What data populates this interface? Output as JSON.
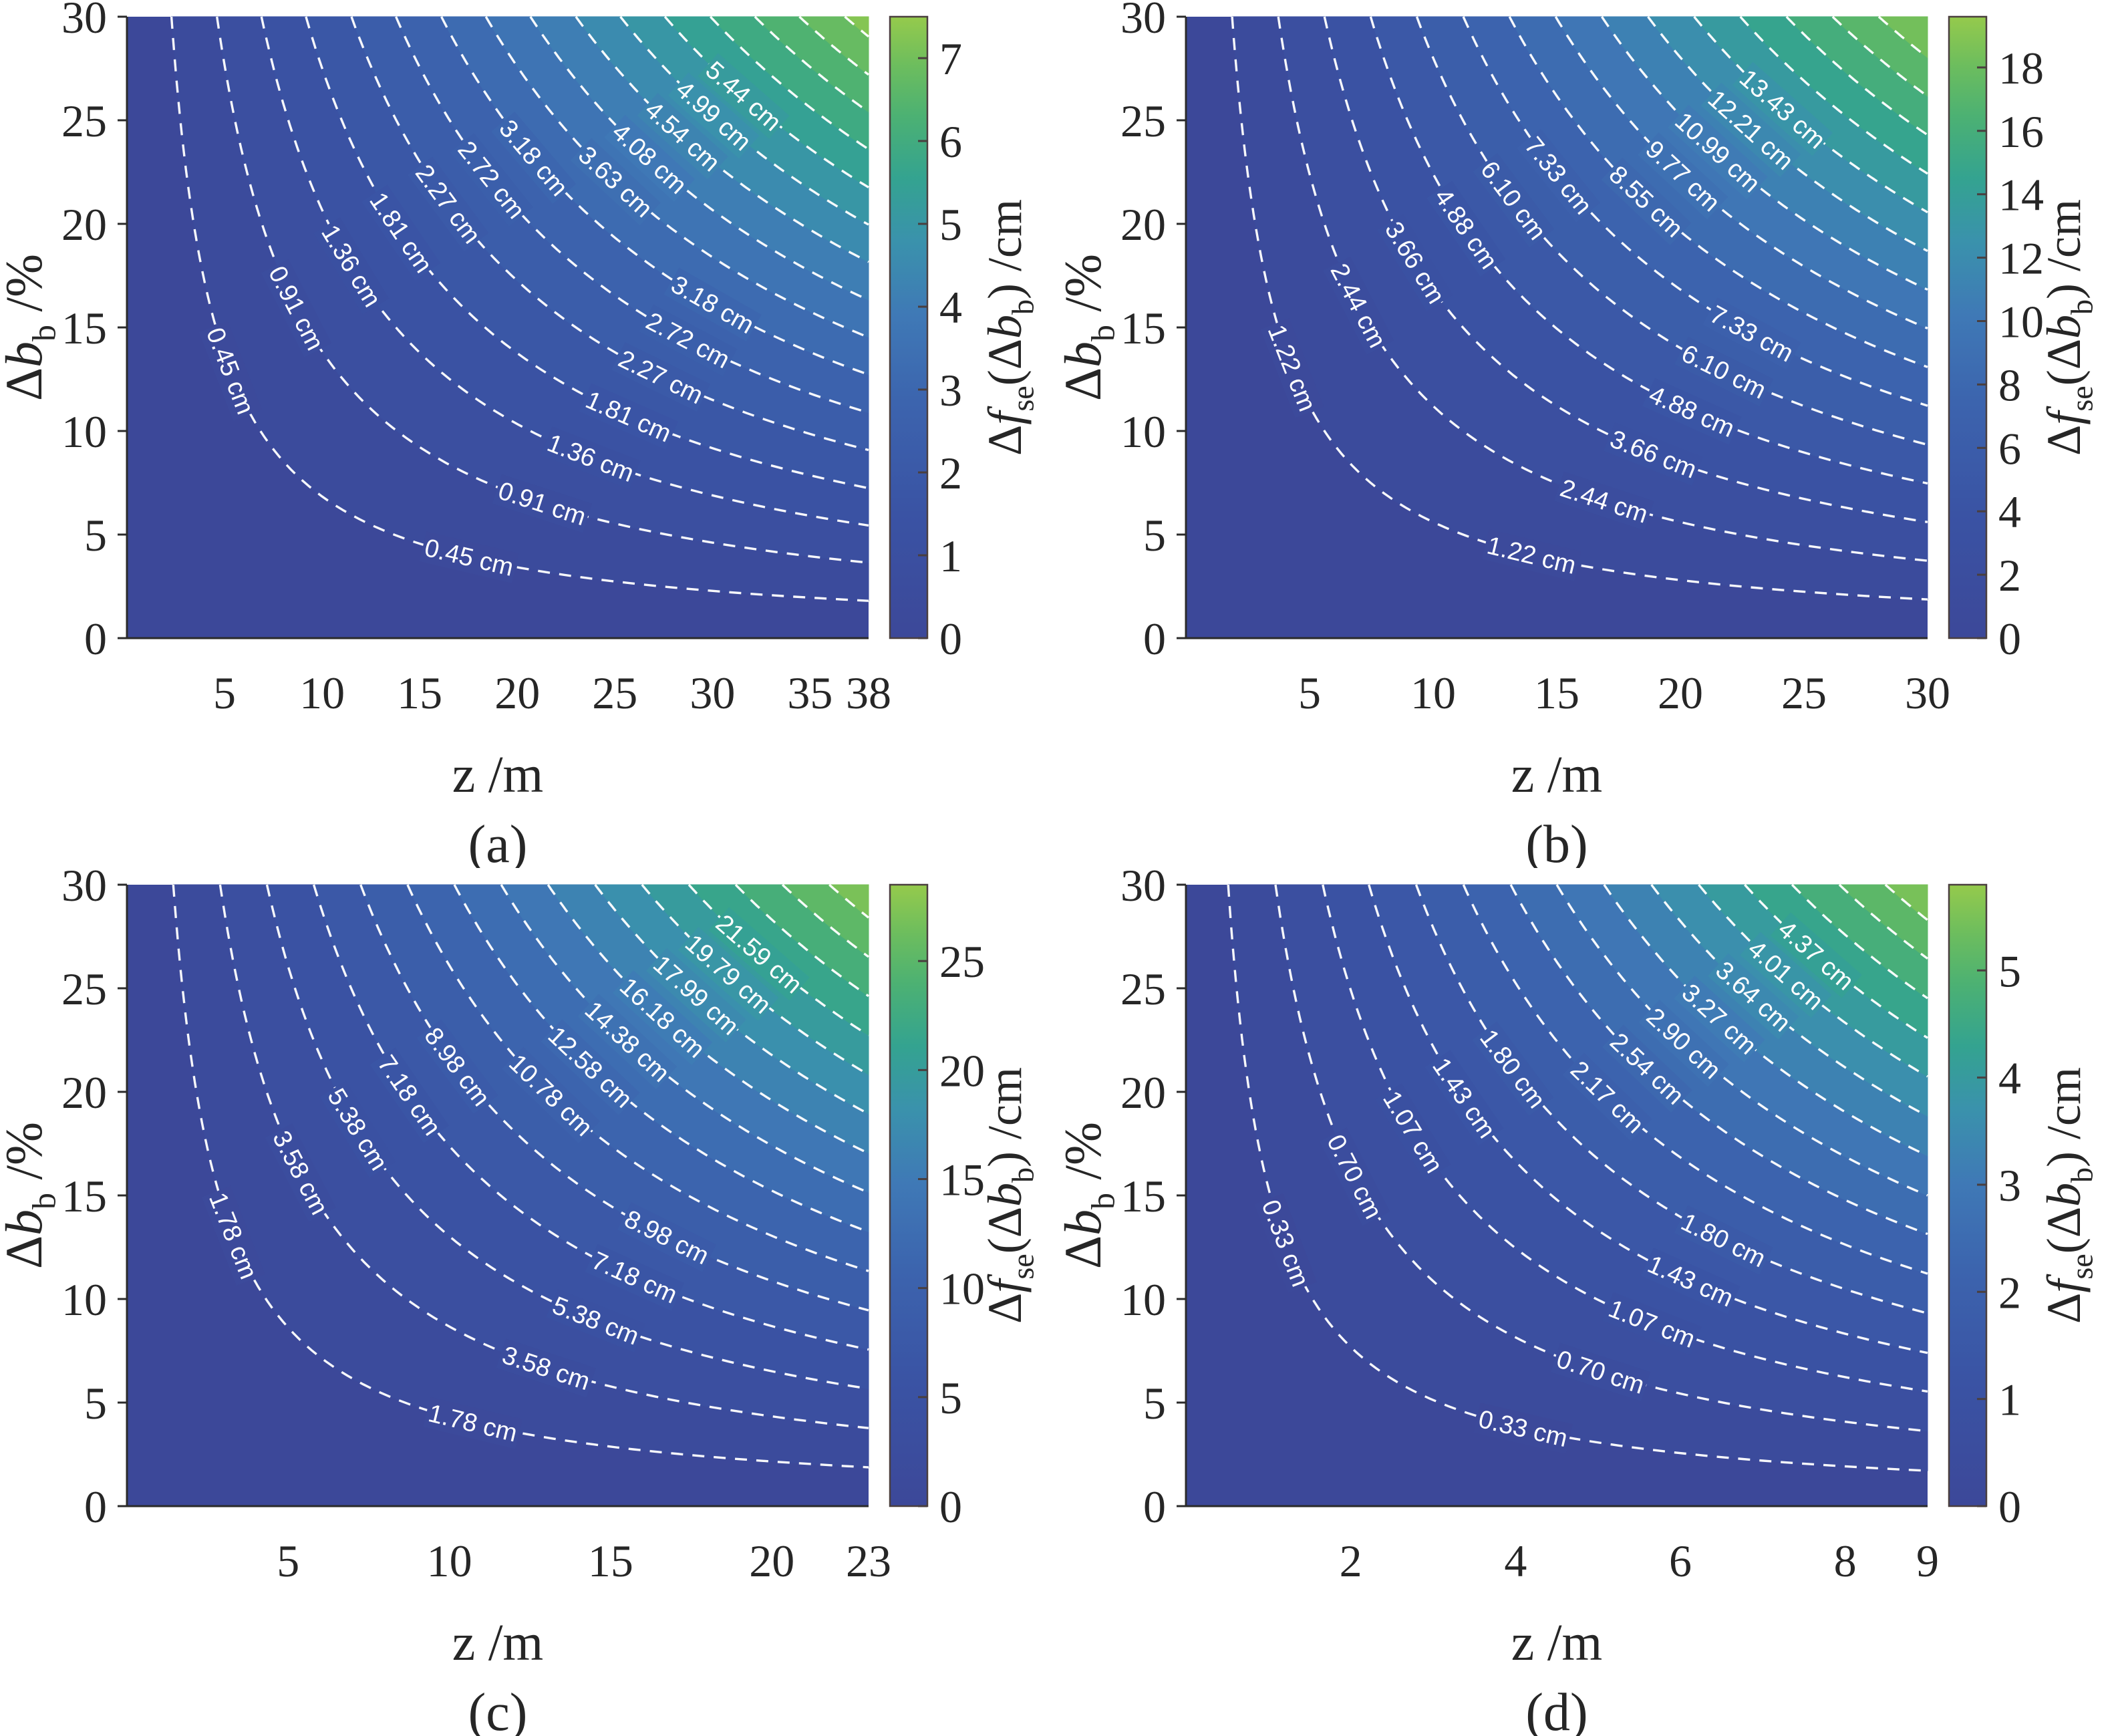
{
  "style": {
    "background": "#ffffff",
    "axis_color": "#2b2b2b",
    "tick_text_color": "#262626",
    "contour_line_color": "#ffffff",
    "contour_label_color": "#ffffff",
    "colormap": [
      [
        0.0,
        "#3c4899"
      ],
      [
        0.2,
        "#3a53a4"
      ],
      [
        0.38,
        "#3c64ae"
      ],
      [
        0.52,
        "#3f79b6"
      ],
      [
        0.64,
        "#3a92ac"
      ],
      [
        0.74,
        "#34a390"
      ],
      [
        0.84,
        "#4cb173"
      ],
      [
        0.92,
        "#6cbd5e"
      ],
      [
        1.0,
        "#95ca4c"
      ]
    ]
  },
  "chart_data": [
    {
      "type": "contour",
      "panel_label": "(a)",
      "xlabel": "z /m",
      "ylabel": "Δb_b /%",
      "xlabel_parts": [
        {
          "t": "z"
        },
        {
          "t": " /m"
        }
      ],
      "ylabel_parts": [
        {
          "t": "Δ"
        },
        {
          "t": "b",
          "i": true
        },
        {
          "t": "b",
          "sub": true
        },
        {
          "t": " /%"
        }
      ],
      "x_ticks": [
        5,
        10,
        15,
        20,
        25,
        30,
        35,
        38
      ],
      "x_max": 38,
      "y_ticks": [
        0,
        5,
        10,
        15,
        20,
        25,
        30
      ],
      "y_max": 30,
      "vmax": 7.5,
      "contour_unit": "cm",
      "levels": [
        {
          "v": 0.45,
          "label": "0.45 cm",
          "n": 2
        },
        {
          "v": 0.91,
          "label": "0.91 cm",
          "n": 2
        },
        {
          "v": 1.36,
          "label": "1.36 cm",
          "n": 2
        },
        {
          "v": 1.81,
          "label": "1.81 cm",
          "n": 2
        },
        {
          "v": 2.27,
          "label": "2.27 cm",
          "n": 2
        },
        {
          "v": 2.72,
          "label": "2.72 cm",
          "n": 2
        },
        {
          "v": 3.18,
          "label": "3.18 cm",
          "n": 2
        },
        {
          "v": 3.63,
          "label": "3.63 cm",
          "n": 1
        },
        {
          "v": 4.08,
          "label": "4.08 cm",
          "n": 1
        },
        {
          "v": 4.54,
          "label": "4.54 cm",
          "n": 1
        },
        {
          "v": 4.99,
          "label": "4.99 cm",
          "n": 1
        },
        {
          "v": 5.44,
          "label": "5.44 cm",
          "n": 1
        },
        {
          "v": 5.9,
          "n": 0
        },
        {
          "v": 6.35,
          "n": 0
        },
        {
          "v": 6.8,
          "n": 0
        },
        {
          "v": 7.26,
          "n": 0
        }
      ],
      "colorbar": {
        "ticks": [
          0,
          1,
          2,
          3,
          4,
          5,
          6,
          7
        ],
        "label": "Δf_se(Δb_b) /cm",
        "label_parts": [
          {
            "t": "Δ"
          },
          {
            "t": "f",
            "i": true
          },
          {
            "t": "se",
            "sub": true
          },
          {
            "t": "(Δ"
          },
          {
            "t": "b",
            "i": true
          },
          {
            "t": "b",
            "sub": true
          },
          {
            "t": ") /cm"
          }
        ]
      }
    },
    {
      "type": "contour",
      "panel_label": "(b)",
      "xlabel": "z /m",
      "ylabel": "Δb_b /%",
      "xlabel_parts": [
        {
          "t": "z"
        },
        {
          "t": " /m"
        }
      ],
      "ylabel_parts": [
        {
          "t": "Δ"
        },
        {
          "t": "b",
          "i": true
        },
        {
          "t": "b",
          "sub": true
        },
        {
          "t": " /%"
        }
      ],
      "x_ticks": [
        5,
        10,
        15,
        20,
        25,
        30
      ],
      "x_max": 30,
      "y_ticks": [
        0,
        5,
        10,
        15,
        20,
        25,
        30
      ],
      "y_max": 30,
      "vmax": 19.6,
      "contour_unit": "cm",
      "levels": [
        {
          "v": 1.22,
          "label": "1.22 cm",
          "n": 2
        },
        {
          "v": 2.44,
          "label": "2.44 cm",
          "n": 2
        },
        {
          "v": 3.66,
          "label": "3.66 cm",
          "n": 2
        },
        {
          "v": 4.88,
          "label": "4.88 cm",
          "n": 2
        },
        {
          "v": 6.1,
          "label": "6.10 cm",
          "n": 2
        },
        {
          "v": 7.33,
          "label": "7.33 cm",
          "n": 2
        },
        {
          "v": 8.55,
          "label": "8.55 cm",
          "n": 1
        },
        {
          "v": 9.77,
          "label": "9.77 cm",
          "n": 1
        },
        {
          "v": 10.99,
          "label": "10.99 cm",
          "n": 1
        },
        {
          "v": 12.21,
          "label": "12.21 cm",
          "n": 1
        },
        {
          "v": 13.43,
          "label": "13.43 cm",
          "n": 1
        },
        {
          "v": 14.65,
          "n": 0
        },
        {
          "v": 15.87,
          "n": 0
        },
        {
          "v": 17.09,
          "n": 0
        },
        {
          "v": 18.31,
          "n": 0
        }
      ],
      "colorbar": {
        "ticks": [
          0,
          2,
          4,
          6,
          8,
          10,
          12,
          14,
          16,
          18
        ],
        "label": "Δf_se(Δb_b) /cm",
        "label_parts": [
          {
            "t": "Δ"
          },
          {
            "t": "f",
            "i": true
          },
          {
            "t": "se",
            "sub": true
          },
          {
            "t": "(Δ"
          },
          {
            "t": "b",
            "i": true
          },
          {
            "t": "b",
            "sub": true
          },
          {
            "t": ") /cm"
          }
        ]
      }
    },
    {
      "type": "contour",
      "panel_label": "(c)",
      "xlabel": "z /m",
      "ylabel": "Δb_b /%",
      "xlabel_parts": [
        {
          "t": "z"
        },
        {
          "t": " /m"
        }
      ],
      "ylabel_parts": [
        {
          "t": "Δ"
        },
        {
          "t": "b",
          "i": true
        },
        {
          "t": "b",
          "sub": true
        },
        {
          "t": " /%"
        }
      ],
      "x_ticks": [
        5,
        10,
        15,
        20,
        23
      ],
      "x_max": 23,
      "y_ticks": [
        0,
        5,
        10,
        15,
        20,
        25,
        30
      ],
      "y_max": 30,
      "vmax": 28.5,
      "contour_unit": "cm",
      "levels": [
        {
          "v": 1.78,
          "label": "1.78 cm",
          "n": 2
        },
        {
          "v": 3.58,
          "label": "3.58 cm",
          "n": 2
        },
        {
          "v": 5.38,
          "label": "5.38 cm",
          "n": 2
        },
        {
          "v": 7.18,
          "label": "7.18 cm",
          "n": 2
        },
        {
          "v": 8.98,
          "label": "8.98 cm",
          "n": 2
        },
        {
          "v": 10.78,
          "label": "10.78 cm",
          "n": 1
        },
        {
          "v": 12.58,
          "label": "12.58 cm",
          "n": 1
        },
        {
          "v": 14.38,
          "label": "14.38 cm",
          "n": 1
        },
        {
          "v": 16.18,
          "label": "16.18 cm",
          "n": 1
        },
        {
          "v": 17.99,
          "label": "17.99 cm",
          "n": 1
        },
        {
          "v": 19.79,
          "label": "19.79 cm",
          "n": 1
        },
        {
          "v": 21.59,
          "label": "21.59 cm",
          "n": 1
        },
        {
          "v": 23.39,
          "n": 0
        },
        {
          "v": 25.19,
          "n": 0
        },
        {
          "v": 26.99,
          "n": 0
        }
      ],
      "colorbar": {
        "ticks": [
          0,
          5,
          10,
          15,
          20,
          25
        ],
        "label": "Δf_se(Δb_b) /cm",
        "label_parts": [
          {
            "t": "Δ"
          },
          {
            "t": "f",
            "i": true
          },
          {
            "t": "se",
            "sub": true
          },
          {
            "t": "(Δ"
          },
          {
            "t": "b",
            "i": true
          },
          {
            "t": "b",
            "sub": true
          },
          {
            "t": ") /cm"
          }
        ]
      }
    },
    {
      "type": "contour",
      "panel_label": "(d)",
      "xlabel": "z /m",
      "ylabel": "Δb_b /%",
      "xlabel_parts": [
        {
          "t": "z"
        },
        {
          "t": " /m"
        }
      ],
      "ylabel_parts": [
        {
          "t": "Δ"
        },
        {
          "t": "b",
          "i": true
        },
        {
          "t": "b",
          "sub": true
        },
        {
          "t": " /%"
        }
      ],
      "x_ticks": [
        2,
        4,
        6,
        8,
        9
      ],
      "x_max": 9,
      "y_ticks": [
        0,
        5,
        10,
        15,
        20,
        25,
        30
      ],
      "y_max": 30,
      "vmax": 5.8,
      "contour_unit": "cm",
      "levels": [
        {
          "v": 0.33,
          "label": "0.33 cm",
          "n": 2
        },
        {
          "v": 0.7,
          "label": "0.70 cm",
          "n": 2
        },
        {
          "v": 1.07,
          "label": "1.07 cm",
          "n": 2
        },
        {
          "v": 1.43,
          "label": "1.43 cm",
          "n": 2
        },
        {
          "v": 1.8,
          "label": "1.80 cm",
          "n": 2
        },
        {
          "v": 2.17,
          "label": "2.17 cm",
          "n": 1
        },
        {
          "v": 2.54,
          "label": "2.54 cm",
          "n": 1
        },
        {
          "v": 2.9,
          "label": "2.90 cm",
          "n": 1
        },
        {
          "v": 3.27,
          "label": "3.27 cm",
          "n": 1
        },
        {
          "v": 3.64,
          "label": "3.64 cm",
          "n": 1
        },
        {
          "v": 4.01,
          "label": "4.01 cm",
          "n": 1
        },
        {
          "v": 4.37,
          "label": "4.37 cm",
          "n": 1
        },
        {
          "v": 4.74,
          "n": 0
        },
        {
          "v": 5.11,
          "n": 0
        },
        {
          "v": 5.47,
          "n": 0
        }
      ],
      "colorbar": {
        "ticks": [
          0,
          1,
          2,
          3,
          4,
          5
        ],
        "label": "Δf_se(Δb_b) /cm",
        "label_parts": [
          {
            "t": "Δ"
          },
          {
            "t": "f",
            "i": true
          },
          {
            "t": "se",
            "sub": true
          },
          {
            "t": "(Δ"
          },
          {
            "t": "b",
            "i": true
          },
          {
            "t": "b",
            "sub": true
          },
          {
            "t": ") /cm"
          }
        ]
      }
    }
  ]
}
